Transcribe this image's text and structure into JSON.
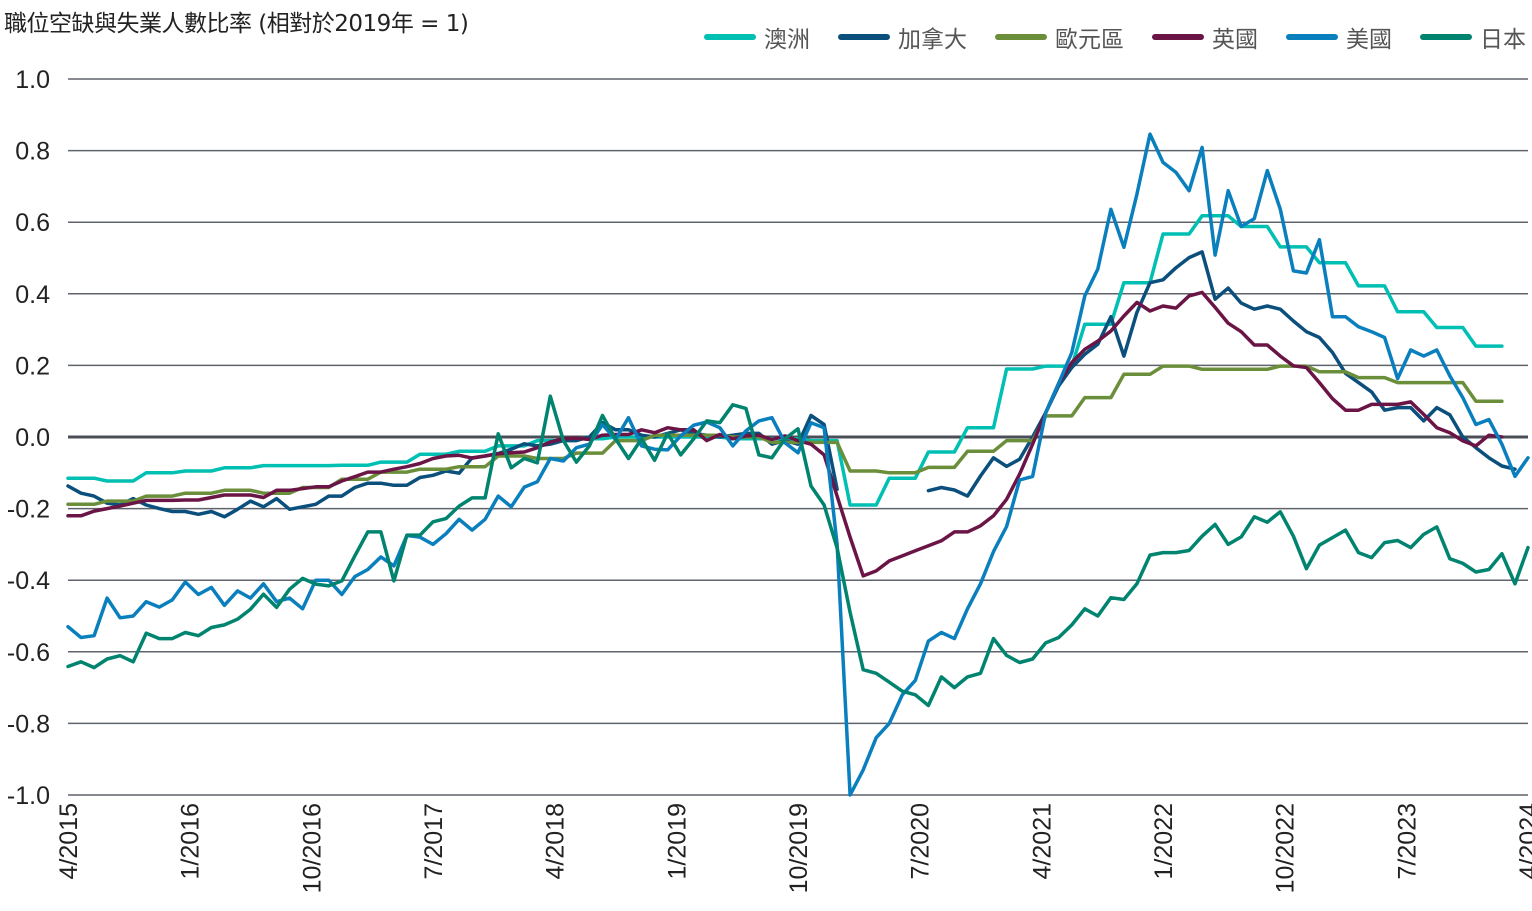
{
  "chart_data": {
    "type": "line",
    "title": "職位空缺與失業人數比率 (相對於2019年 = 1)",
    "xlabel": "",
    "ylabel": "",
    "ylim": [
      -1.0,
      1.0
    ],
    "yticks": [
      "1.0",
      "0.8",
      "0.6",
      "0.4",
      "0.2",
      "0.0",
      "-0.2",
      "-0.4",
      "-0.6",
      "-0.8",
      "-1.0"
    ],
    "ytick_values": [
      1.0,
      0.8,
      0.6,
      0.4,
      0.2,
      0.0,
      -0.2,
      -0.4,
      -0.6,
      -0.8,
      -1.0
    ],
    "xticks": [
      "4/2015",
      "1/2016",
      "10/2016",
      "7/2017",
      "4/2018",
      "1/2019",
      "10/2019",
      "7/2020",
      "4/2021",
      "1/2022",
      "10/2022",
      "7/2023",
      "4/2024"
    ],
    "x_points": 113,
    "grid": true,
    "legend_position": "top-right",
    "series": [
      {
        "name": "澳洲",
        "color": "#00bfb3",
        "values": [
          -0.115,
          -0.115,
          -0.115,
          -0.123,
          -0.123,
          -0.123,
          -0.1,
          -0.1,
          -0.1,
          -0.095,
          -0.095,
          -0.095,
          -0.086,
          -0.086,
          -0.086,
          -0.08,
          -0.08,
          -0.08,
          -0.08,
          -0.08,
          -0.08,
          -0.079,
          -0.079,
          -0.079,
          -0.07,
          -0.07,
          -0.07,
          -0.048,
          -0.048,
          -0.048,
          -0.04,
          -0.04,
          -0.04,
          -0.025,
          -0.025,
          -0.025,
          -0.01,
          -0.01,
          -0.01,
          -0.005,
          -0.005,
          -0.005,
          0,
          0,
          0,
          0,
          0,
          0,
          0,
          0,
          0,
          -0.005,
          -0.005,
          -0.005,
          -0.005,
          -0.005,
          -0.005,
          -0.01,
          -0.01,
          -0.01,
          -0.19,
          -0.19,
          -0.19,
          -0.115,
          -0.115,
          -0.115,
          -0.042,
          -0.042,
          -0.042,
          0.026,
          0.026,
          0.026,
          0.19,
          0.19,
          0.19,
          0.198,
          0.198,
          0.198,
          0.315,
          0.315,
          0.315,
          0.431,
          0.431,
          0.431,
          0.567,
          0.567,
          0.567,
          0.618,
          0.618,
          0.618,
          0.588,
          0.588,
          0.588,
          0.531,
          0.531,
          0.531,
          0.487,
          0.487,
          0.487,
          0.422,
          0.422,
          0.422,
          0.35,
          0.35,
          0.35,
          0.306,
          0.306,
          0.306,
          0.254,
          0.254,
          0.254
        ]
      },
      {
        "name": "加拿大",
        "color": "#0b4f7c",
        "values": [
          -0.137,
          -0.157,
          -0.165,
          -0.185,
          -0.19,
          -0.172,
          -0.19,
          -0.2,
          -0.208,
          -0.208,
          -0.216,
          -0.208,
          -0.223,
          -0.202,
          -0.179,
          -0.195,
          -0.172,
          -0.202,
          -0.195,
          -0.188,
          -0.165,
          -0.165,
          -0.141,
          -0.129,
          -0.129,
          -0.135,
          -0.135,
          -0.113,
          -0.107,
          -0.095,
          -0.101,
          -0.058,
          -0.053,
          -0.046,
          -0.034,
          -0.019,
          -0.025,
          -0.02,
          -0.01,
          -0.01,
          0.0,
          0.04,
          0.02,
          0.02,
          0.005,
          0.0,
          0.01,
          0.02,
          0.01,
          0.005,
          0.0,
          0.005,
          0.01,
          0.01,
          -0.02,
          -0.01,
          -0.02,
          0.06,
          0.035,
          -0.146,
          null,
          null,
          null,
          null,
          null,
          null,
          -0.15,
          -0.141,
          -0.148,
          -0.165,
          -0.109,
          -0.058,
          -0.082,
          -0.062,
          0.0,
          0.068,
          0.143,
          0.194,
          0.231,
          0.259,
          0.336,
          0.226,
          0.348,
          0.431,
          0.439,
          0.473,
          0.501,
          0.517,
          0.385,
          0.416,
          0.374,
          0.357,
          0.366,
          0.357,
          0.324,
          0.294,
          0.278,
          0.236,
          0.178,
          0.152,
          0.126,
          0.075,
          0.082,
          0.082,
          0.045,
          0.082,
          0.062,
          0.0,
          -0.03,
          -0.058,
          -0.081,
          -0.09
        ]
      },
      {
        "name": "歐元區",
        "color": "#6b8e3a",
        "values": [
          -0.188,
          -0.188,
          -0.188,
          -0.179,
          -0.179,
          -0.179,
          -0.165,
          -0.165,
          -0.165,
          -0.157,
          -0.157,
          -0.157,
          -0.149,
          -0.149,
          -0.149,
          -0.157,
          -0.157,
          -0.157,
          -0.141,
          -0.141,
          -0.141,
          -0.118,
          -0.118,
          -0.118,
          -0.098,
          -0.098,
          -0.098,
          -0.09,
          -0.09,
          -0.09,
          -0.083,
          -0.083,
          -0.083,
          -0.053,
          -0.053,
          -0.053,
          -0.06,
          -0.06,
          -0.06,
          -0.045,
          -0.045,
          -0.045,
          -0.01,
          -0.01,
          -0.01,
          0.005,
          0.005,
          0.005,
          0.005,
          0.005,
          0.005,
          0,
          0,
          0,
          -0.015,
          -0.015,
          -0.015,
          -0.015,
          -0.015,
          -0.015,
          -0.095,
          -0.095,
          -0.095,
          -0.1,
          -0.1,
          -0.1,
          -0.085,
          -0.085,
          -0.085,
          -0.04,
          -0.04,
          -0.04,
          -0.01,
          -0.01,
          -0.01,
          0.059,
          0.059,
          0.059,
          0.11,
          0.11,
          0.11,
          0.175,
          0.175,
          0.175,
          0.198,
          0.198,
          0.198,
          0.189,
          0.189,
          0.189,
          0.189,
          0.189,
          0.189,
          0.198,
          0.198,
          0.198,
          0.182,
          0.182,
          0.182,
          0.166,
          0.166,
          0.166,
          0.152,
          0.152,
          0.152,
          0.152,
          0.152,
          0.152,
          0.1,
          0.1,
          0.1
        ]
      },
      {
        "name": "英國",
        "color": "#6b1446",
        "values": [
          -0.22,
          -0.22,
          -0.207,
          -0.2,
          -0.193,
          -0.185,
          -0.177,
          -0.177,
          -0.177,
          -0.176,
          -0.176,
          -0.169,
          -0.162,
          -0.162,
          -0.162,
          -0.169,
          -0.149,
          -0.149,
          -0.144,
          -0.139,
          -0.139,
          -0.123,
          -0.111,
          -0.098,
          -0.098,
          -0.09,
          -0.083,
          -0.074,
          -0.06,
          -0.053,
          -0.051,
          -0.059,
          -0.053,
          -0.047,
          -0.044,
          -0.042,
          -0.03,
          -0.014,
          -0.005,
          -0.003,
          -0.007,
          0.005,
          0.007,
          0.007,
          0.02,
          0.012,
          0.026,
          0.02,
          0.02,
          -0.01,
          0.007,
          -0.005,
          0.003,
          0.005,
          -0.007,
          0.003,
          -0.01,
          -0.02,
          -0.05,
          -0.165,
          -0.28,
          -0.388,
          -0.374,
          -0.346,
          -0.332,
          -0.318,
          -0.304,
          -0.29,
          -0.265,
          -0.265,
          -0.248,
          -0.22,
          -0.174,
          -0.104,
          -0.02,
          0.068,
          0.15,
          0.208,
          0.245,
          0.268,
          0.296,
          0.338,
          0.376,
          0.352,
          0.366,
          0.36,
          0.394,
          0.404,
          0.362,
          0.318,
          0.294,
          0.257,
          0.257,
          0.226,
          0.199,
          0.194,
          0.152,
          0.107,
          0.075,
          0.075,
          0.091,
          0.091,
          0.091,
          0.098,
          0.063,
          0.026,
          0.012,
          -0.011,
          -0.025,
          0.005,
          0.0
        ]
      },
      {
        "name": "美國",
        "color": "#0a7fbd",
        "values": [
          -0.53,
          -0.56,
          -0.555,
          -0.45,
          -0.505,
          -0.5,
          -0.46,
          -0.475,
          -0.455,
          -0.405,
          -0.44,
          -0.42,
          -0.47,
          -0.43,
          -0.45,
          -0.41,
          -0.46,
          -0.45,
          -0.48,
          -0.4,
          -0.4,
          -0.44,
          -0.39,
          -0.37,
          -0.335,
          -0.36,
          -0.275,
          -0.28,
          -0.3,
          -0.27,
          -0.23,
          -0.26,
          -0.23,
          -0.165,
          -0.195,
          -0.14,
          -0.125,
          -0.06,
          -0.067,
          -0.03,
          -0.02,
          0.035,
          -0.007,
          0.054,
          -0.025,
          -0.034,
          -0.036,
          0.003,
          0.033,
          0.042,
          0.026,
          -0.025,
          0.017,
          0.045,
          0.054,
          -0.016,
          -0.044,
          0.04,
          0.026,
          -0.3,
          -1.0,
          -0.93,
          -0.84,
          -0.8,
          -0.72,
          -0.68,
          -0.57,
          -0.546,
          -0.563,
          -0.48,
          -0.41,
          -0.32,
          -0.25,
          -0.12,
          -0.11,
          0.068,
          0.15,
          0.236,
          0.394,
          0.469,
          0.636,
          0.53,
          0.678,
          0.846,
          0.767,
          0.739,
          0.688,
          0.809,
          0.508,
          0.688,
          0.588,
          0.61,
          0.744,
          0.636,
          0.464,
          0.458,
          0.551,
          0.336,
          0.336,
          0.308,
          0.294,
          0.278,
          0.163,
          0.243,
          0.226,
          0.243,
          0.171,
          0.11,
          0.035,
          0.049,
          -0.02,
          -0.11,
          -0.058
        ]
      },
      {
        "name": "日本",
        "color": "#00846f",
        "values": [
          -0.641,
          -0.628,
          -0.644,
          -0.62,
          -0.611,
          -0.628,
          -0.548,
          -0.563,
          -0.563,
          -0.546,
          -0.555,
          -0.532,
          -0.525,
          -0.509,
          -0.481,
          -0.439,
          -0.476,
          -0.425,
          -0.395,
          -0.411,
          -0.416,
          -0.402,
          -0.332,
          -0.265,
          -0.265,
          -0.402,
          -0.274,
          -0.274,
          -0.237,
          -0.228,
          -0.193,
          -0.17,
          -0.17,
          0.009,
          -0.086,
          -0.06,
          -0.072,
          0.114,
          -0.01,
          -0.07,
          -0.025,
          0.06,
          -0.005,
          -0.06,
          -0.005,
          -0.065,
          0.01,
          -0.05,
          -0.005,
          0.045,
          0.04,
          0.09,
          0.08,
          -0.05,
          -0.058,
          -0.005,
          0.023,
          -0.137,
          -0.19,
          -0.31,
          -0.49,
          -0.65,
          -0.66,
          -0.685,
          -0.71,
          -0.72,
          -0.75,
          -0.67,
          -0.7,
          -0.67,
          -0.66,
          -0.563,
          -0.61,
          -0.63,
          -0.62,
          -0.575,
          -0.56,
          -0.525,
          -0.48,
          -0.5,
          -0.449,
          -0.454,
          -0.41,
          -0.33,
          -0.323,
          -0.323,
          -0.317,
          -0.277,
          -0.244,
          -0.3,
          -0.279,
          -0.223,
          -0.238,
          -0.209,
          -0.277,
          -0.368,
          -0.302,
          -0.281,
          -0.26,
          -0.323,
          -0.337,
          -0.295,
          -0.289,
          -0.309,
          -0.272,
          -0.251,
          -0.34,
          -0.353,
          -0.377,
          -0.37,
          -0.326,
          -0.41,
          -0.309
        ]
      }
    ]
  }
}
